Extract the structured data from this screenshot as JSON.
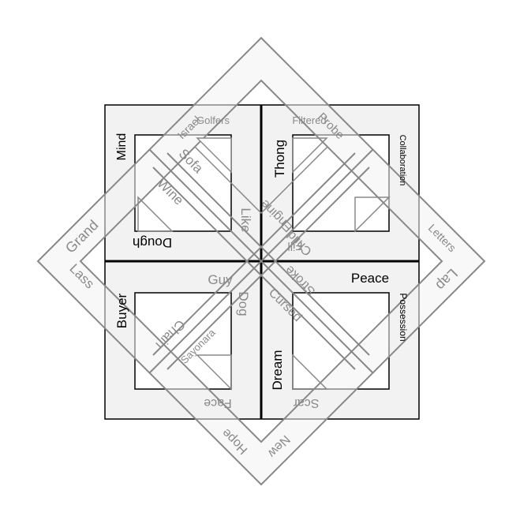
{
  "colors": {
    "panel_fill": "#f2f2f2",
    "panel_stroke": "#000000",
    "diamond_stroke": "#888888",
    "diamond_fill": "#f2f2f2",
    "dark_text": "#000000",
    "gray_text": "#8a8a8a"
  },
  "labels": {
    "golfers": "Golfers",
    "israel": "Israel",
    "mind": "Mind",
    "sofa": "Sofa",
    "wine": "Wine",
    "like": "Like",
    "dough": "Dough",
    "grand": "Grand",
    "lass": "Lass",
    "filtered": "Filtered",
    "probe": "Probe",
    "thong": "Thong",
    "collaboration": "Collaboration",
    "engine": "Engine",
    "fill": "Fill",
    "letters": "Letters",
    "lap": "Lap",
    "child": "Child",
    "peace": "Peace",
    "stroke": "Stroke",
    "possession": "Possession",
    "guy": "Guy",
    "buyer": "Buyer",
    "chain": "Chain",
    "dog": "Dog",
    "sayonara": "Sayonara",
    "face": "Face",
    "cursed": "Cursed",
    "dream": "Dream",
    "scar": "Scar",
    "new": "New",
    "hope": "Hope"
  }
}
